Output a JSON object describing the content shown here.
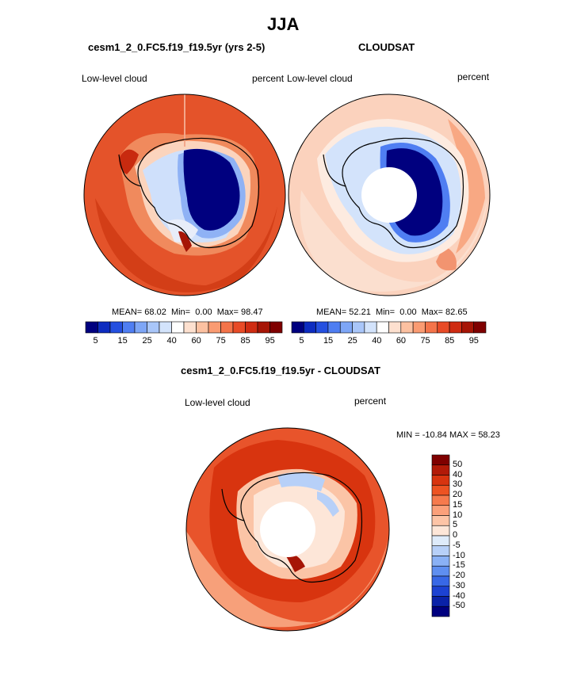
{
  "title": "JJA",
  "panels": [
    {
      "title": "cesm1_2_0.FC5.f19_f19.5yr (yrs 2-5)",
      "left_label": "Low-level cloud",
      "right_label": "percent",
      "stats": {
        "mean_label": "MEAN=",
        "mean": "68.02",
        "min_label": "Min=",
        "min": "0.00",
        "max_label": "Max=",
        "max": "98.47"
      }
    },
    {
      "title": "CLOUDSAT",
      "left_label": "Low-level cloud",
      "right_label": "percent",
      "stats": {
        "mean_label": "MEAN=",
        "mean": "52.21",
        "min_label": "Min=",
        "min": "0.00",
        "max_label": "Max=",
        "max": "82.65"
      }
    }
  ],
  "colorbar_top": {
    "ticks": [
      "5",
      "15",
      "25",
      "40",
      "60",
      "75",
      "85",
      "95"
    ],
    "colors": [
      "#00007f",
      "#0d2cc0",
      "#2550e0",
      "#4f7ef2",
      "#7ea6f6",
      "#a9c6f9",
      "#d3e3fb",
      "#ffffff",
      "#fde0cf",
      "#fcc1a1",
      "#fa9b72",
      "#f4744a",
      "#e84b27",
      "#cf2c12",
      "#a61506",
      "#7f0000"
    ]
  },
  "diff_panel": {
    "title": "cesm1_2_0.FC5.f19_f19.5yr - CLOUDSAT",
    "left_label": "Low-level cloud",
    "right_label": "percent",
    "minmax": "MIN = -10.84 MAX =  58.23"
  },
  "colorbar_diff": {
    "ticks": [
      "50",
      "40",
      "30",
      "20",
      "15",
      "10",
      "5",
      "0",
      "-5",
      "-10",
      "-15",
      "-20",
      "-30",
      "-40",
      "-50"
    ],
    "colors": [
      "#7f0000",
      "#b21a08",
      "#d8340f",
      "#ed5322",
      "#f67a4d",
      "#fba07a",
      "#fdc4a6",
      "#fde6d8",
      "#deebfa",
      "#b7d0f8",
      "#8ab1f5",
      "#5f8ff0",
      "#3868e6",
      "#1c42d2",
      "#0a22a8",
      "#00007f"
    ]
  }
}
